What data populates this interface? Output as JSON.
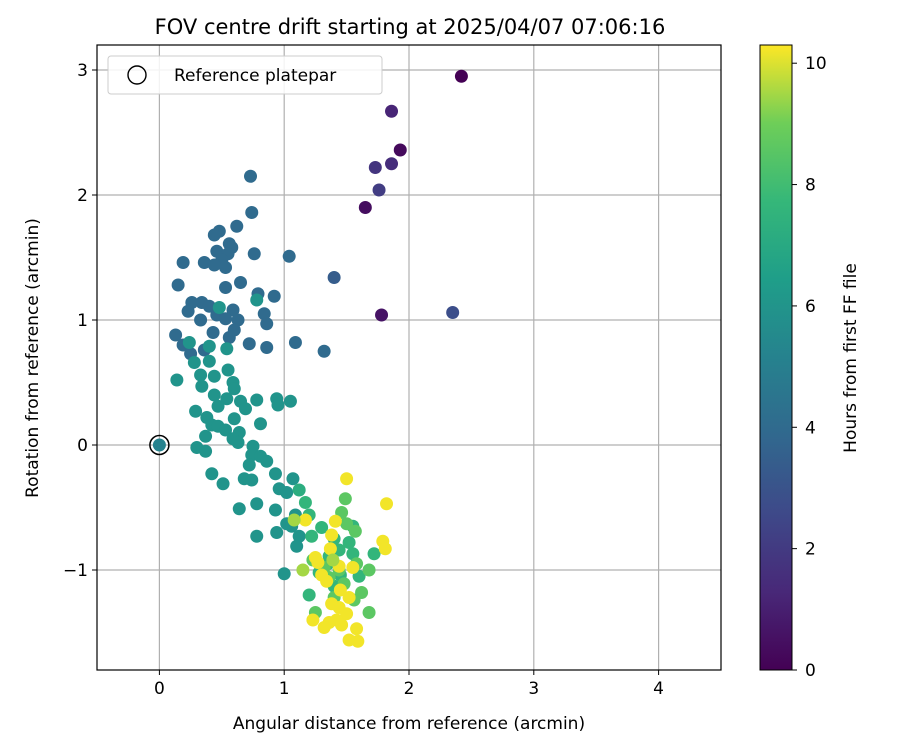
{
  "chart_data": {
    "type": "scatter",
    "title": "FOV centre drift starting at 2025/04/07 07:06:16",
    "xlabel": "Angular distance from reference (arcmin)",
    "ylabel": "Rotation from reference (arcmin)",
    "xlim": [
      -0.5,
      4.5
    ],
    "ylim": [
      -1.8,
      3.2
    ],
    "x_ticks": [
      0,
      1,
      2,
      3,
      4
    ],
    "y_ticks": [
      -1,
      0,
      1,
      2,
      3
    ],
    "grid": true,
    "legend": {
      "position": "top-left",
      "entries": [
        "Reference platepar"
      ]
    },
    "reference_point": {
      "x": 0,
      "y": 0
    },
    "colorbar": {
      "label": "Hours from first FF file",
      "min": 0,
      "max": 10.3,
      "ticks": [
        0,
        2,
        4,
        6,
        8,
        10
      ],
      "colormap": "viridis"
    },
    "points": [
      [
        2.42,
        2.95,
        0.0
      ],
      [
        1.93,
        2.36,
        0.3
      ],
      [
        1.65,
        1.9,
        0.4
      ],
      [
        1.78,
        1.04,
        0.6
      ],
      [
        1.86,
        2.67,
        1.2
      ],
      [
        1.86,
        2.25,
        1.5
      ],
      [
        1.73,
        2.22,
        1.8
      ],
      [
        1.76,
        2.04,
        2.1
      ],
      [
        2.35,
        1.06,
        2.8
      ],
      [
        1.4,
        1.34,
        3.4
      ],
      [
        0.73,
        2.15,
        4.0
      ],
      [
        0.74,
        1.86,
        4.0
      ],
      [
        0.62,
        1.75,
        4.0
      ],
      [
        0.48,
        1.71,
        4.0
      ],
      [
        0.44,
        1.68,
        4.0
      ],
      [
        0.56,
        1.61,
        4.0
      ],
      [
        0.58,
        1.58,
        4.0
      ],
      [
        0.46,
        1.55,
        4.0
      ],
      [
        0.55,
        1.53,
        4.0
      ],
      [
        0.76,
        1.53,
        4.0
      ],
      [
        1.04,
        1.51,
        4.0
      ],
      [
        0.5,
        1.48,
        4.0
      ],
      [
        0.36,
        1.46,
        4.0
      ],
      [
        0.19,
        1.46,
        4.0
      ],
      [
        0.44,
        1.44,
        4.0
      ],
      [
        0.53,
        1.42,
        4.0
      ],
      [
        0.65,
        1.3,
        4.0
      ],
      [
        0.15,
        1.28,
        4.0
      ],
      [
        0.53,
        1.26,
        4.0
      ],
      [
        0.79,
        1.21,
        4.0
      ],
      [
        0.92,
        1.19,
        4.0
      ],
      [
        0.34,
        1.14,
        4.0
      ],
      [
        0.26,
        1.14,
        4.0
      ],
      [
        0.4,
        1.11,
        4.0
      ],
      [
        0.59,
        1.08,
        4.0
      ],
      [
        0.23,
        1.07,
        4.0
      ],
      [
        0.84,
        1.05,
        4.0
      ],
      [
        0.46,
        1.04,
        4.0
      ],
      [
        0.53,
        1.01,
        4.0
      ],
      [
        0.63,
        1.0,
        4.0
      ],
      [
        0.33,
        1.0,
        4.0
      ],
      [
        0.86,
        0.97,
        4.0
      ],
      [
        0.6,
        0.92,
        4.0
      ],
      [
        0.43,
        0.9,
        4.0
      ],
      [
        0.13,
        0.88,
        4.0
      ],
      [
        0.56,
        0.86,
        4.0
      ],
      [
        1.09,
        0.82,
        4.0
      ],
      [
        0.19,
        0.8,
        4.0
      ],
      [
        0.72,
        0.81,
        4.0
      ],
      [
        0.86,
        0.78,
        4.0
      ],
      [
        1.32,
        0.75,
        4.0
      ],
      [
        0.36,
        0.76,
        4.0
      ],
      [
        0.25,
        0.73,
        4.0
      ],
      [
        0.78,
        1.16,
        6.0
      ],
      [
        0.48,
        1.1,
        6.0
      ],
      [
        0.24,
        0.82,
        6.0
      ],
      [
        0.4,
        0.79,
        6.0
      ],
      [
        0.54,
        0.77,
        6.0
      ],
      [
        0.28,
        0.66,
        6.0
      ],
      [
        0.4,
        0.67,
        6.0
      ],
      [
        0.55,
        0.6,
        6.0
      ],
      [
        0.33,
        0.56,
        6.0
      ],
      [
        0.44,
        0.55,
        6.0
      ],
      [
        0.14,
        0.52,
        6.0
      ],
      [
        0.59,
        0.5,
        6.0
      ],
      [
        0.34,
        0.47,
        6.0
      ],
      [
        0.6,
        0.45,
        6.0
      ],
      [
        0.44,
        0.4,
        6.0
      ],
      [
        0.54,
        0.37,
        6.0
      ],
      [
        0.78,
        0.36,
        6.0
      ],
      [
        0.65,
        0.35,
        6.0
      ],
      [
        0.94,
        0.37,
        6.0
      ],
      [
        1.05,
        0.35,
        6.0
      ],
      [
        0.47,
        0.31,
        6.0
      ],
      [
        0.95,
        0.32,
        6.0
      ],
      [
        0.69,
        0.29,
        6.0
      ],
      [
        0.29,
        0.27,
        6.0
      ],
      [
        0.38,
        0.22,
        6.0
      ],
      [
        0.6,
        0.21,
        6.0
      ],
      [
        0.42,
        0.16,
        6.0
      ],
      [
        0.81,
        0.17,
        6.0
      ],
      [
        0.47,
        0.15,
        6.0
      ],
      [
        0.53,
        0.12,
        6.0
      ],
      [
        0.64,
        0.1,
        6.0
      ],
      [
        0.37,
        0.07,
        6.0
      ],
      [
        0.59,
        0.05,
        6.0
      ],
      [
        0.63,
        0.02,
        6.0
      ],
      [
        0.75,
        -0.01,
        6.0
      ],
      [
        0.3,
        -0.02,
        6.0
      ],
      [
        0.37,
        -0.05,
        6.0
      ],
      [
        0.74,
        -0.08,
        6.0
      ],
      [
        0.81,
        -0.09,
        6.0
      ],
      [
        0.86,
        -0.13,
        6.0
      ],
      [
        0.72,
        -0.16,
        6.0
      ],
      [
        0.42,
        -0.23,
        6.0
      ],
      [
        0.93,
        -0.23,
        6.0
      ],
      [
        0.68,
        -0.27,
        6.0
      ],
      [
        0.74,
        -0.28,
        6.0
      ],
      [
        0.51,
        -0.31,
        6.0
      ],
      [
        1.07,
        -0.27,
        6.0
      ],
      [
        0.96,
        -0.35,
        6.0
      ],
      [
        1.02,
        -0.38,
        6.0
      ],
      [
        0.78,
        -0.47,
        6.0
      ],
      [
        0.64,
        -0.51,
        6.0
      ],
      [
        0.93,
        -0.52,
        6.0
      ],
      [
        1.09,
        -0.56,
        6.0
      ],
      [
        1.02,
        -0.63,
        6.0
      ],
      [
        0.94,
        -0.7,
        6.0
      ],
      [
        1.06,
        -0.65,
        6.0
      ],
      [
        1.12,
        -0.73,
        6.0
      ],
      [
        0.78,
        -0.73,
        6.0
      ],
      [
        1.1,
        -0.81,
        6.0
      ],
      [
        1.0,
        -1.03,
        6.0
      ],
      [
        1.12,
        -0.36,
        7.2
      ],
      [
        1.17,
        -0.46,
        7.6
      ],
      [
        1.2,
        -0.56,
        7.6
      ],
      [
        1.3,
        -0.66,
        7.6
      ],
      [
        1.22,
        -0.73,
        7.6
      ],
      [
        1.4,
        -0.75,
        7.6
      ],
      [
        1.52,
        -0.78,
        7.6
      ],
      [
        1.44,
        -0.84,
        7.6
      ],
      [
        1.55,
        -0.87,
        7.6
      ],
      [
        1.35,
        -0.95,
        7.6
      ],
      [
        1.28,
        -1.02,
        7.6
      ],
      [
        1.45,
        -1.04,
        7.6
      ],
      [
        1.6,
        -1.05,
        7.6
      ],
      [
        1.4,
        -1.13,
        7.6
      ],
      [
        1.2,
        -1.2,
        7.6
      ],
      [
        1.72,
        -0.87,
        7.6
      ],
      [
        1.55,
        -0.65,
        7.6
      ],
      [
        1.36,
        -0.89,
        7.6
      ],
      [
        1.23,
        -0.92,
        8.6
      ],
      [
        1.32,
        -0.98,
        8.6
      ],
      [
        1.44,
        -1.0,
        8.6
      ],
      [
        1.58,
        -0.95,
        8.6
      ],
      [
        1.68,
        -1.0,
        8.6
      ],
      [
        1.36,
        -1.06,
        8.6
      ],
      [
        1.48,
        -1.11,
        8.6
      ],
      [
        1.62,
        -1.18,
        8.6
      ],
      [
        1.4,
        -1.22,
        8.6
      ],
      [
        1.56,
        -1.24,
        8.6
      ],
      [
        1.68,
        -1.34,
        8.6
      ],
      [
        1.49,
        -0.43,
        8.6
      ],
      [
        1.46,
        -0.54,
        8.6
      ],
      [
        1.57,
        -0.69,
        8.6
      ],
      [
        1.5,
        -0.63,
        8.6
      ],
      [
        1.25,
        -1.34,
        8.6
      ],
      [
        1.5,
        -0.27,
        10.2
      ],
      [
        1.82,
        -0.47,
        10.2
      ],
      [
        1.79,
        -0.77,
        10.2
      ],
      [
        1.81,
        -0.83,
        10.2
      ],
      [
        1.17,
        -0.6,
        10.2
      ],
      [
        1.41,
        -0.61,
        10.2
      ],
      [
        1.38,
        -0.72,
        10.2
      ],
      [
        1.37,
        -0.83,
        10.2
      ],
      [
        1.25,
        -0.9,
        10.2
      ],
      [
        1.27,
        -0.94,
        10.2
      ],
      [
        1.44,
        -0.97,
        10.2
      ],
      [
        1.55,
        -0.98,
        10.2
      ],
      [
        1.3,
        -1.04,
        10.2
      ],
      [
        1.34,
        -1.09,
        10.2
      ],
      [
        1.45,
        -1.16,
        10.2
      ],
      [
        1.52,
        -1.22,
        10.2
      ],
      [
        1.38,
        -1.27,
        10.2
      ],
      [
        1.44,
        -1.3,
        10.2
      ],
      [
        1.5,
        -1.35,
        10.2
      ],
      [
        1.42,
        -1.4,
        10.2
      ],
      [
        1.36,
        -1.42,
        10.2
      ],
      [
        1.46,
        -1.44,
        10.2
      ],
      [
        1.23,
        -1.4,
        10.2
      ],
      [
        1.32,
        -1.46,
        10.2
      ],
      [
        1.58,
        -1.47,
        10.2
      ],
      [
        1.52,
        -1.56,
        10.2
      ],
      [
        1.59,
        -1.57,
        10.2
      ],
      [
        1.08,
        -0.6,
        9.5
      ],
      [
        1.39,
        -0.92,
        9.5
      ],
      [
        1.15,
        -1.0,
        9.5
      ]
    ]
  }
}
